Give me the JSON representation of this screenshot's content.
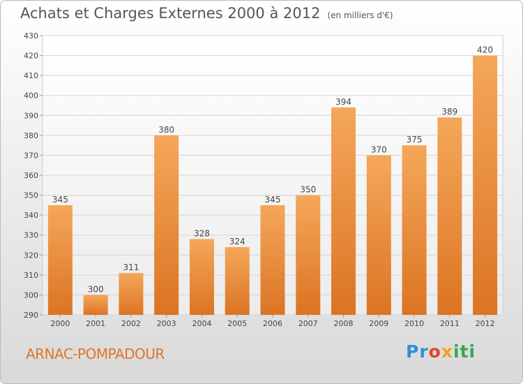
{
  "title": "Achats et Charges Externes 2000 à 2012",
  "unit_label": "(en milliers d'€)",
  "commune": "ARNAC-POMPADOUR",
  "logo": {
    "p1": "Pr",
    "p2": "o",
    "p3": "x",
    "p4": "iti"
  },
  "colors": {
    "bar_top": "#f5a75a",
    "bar_bottom": "#db7423",
    "grid": "#d4d4d4",
    "commune": "#e0752a"
  },
  "chart_data": {
    "type": "bar",
    "categories": [
      "2000",
      "2001",
      "2002",
      "2003",
      "2004",
      "2005",
      "2006",
      "2007",
      "2008",
      "2009",
      "2010",
      "2011",
      "2012"
    ],
    "values": [
      345,
      300,
      311,
      380,
      328,
      324,
      345,
      350,
      394,
      370,
      375,
      389,
      420
    ],
    "title": "Achats et Charges Externes 2000 à 2012",
    "ylim": [
      290,
      430
    ],
    "yticks": [
      290,
      300,
      310,
      320,
      330,
      340,
      350,
      360,
      370,
      380,
      390,
      400,
      410,
      420,
      430
    ],
    "grid": true
  }
}
